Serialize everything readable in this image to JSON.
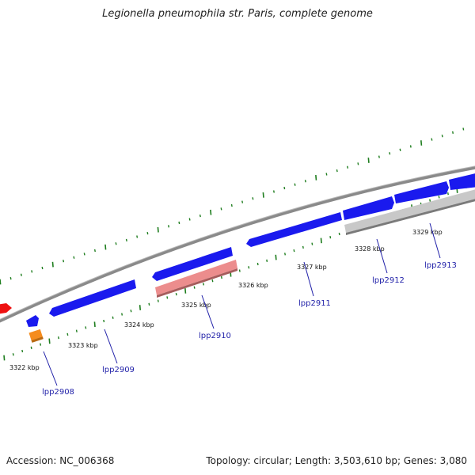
{
  "title": "Legionella pneumophila str. Paris, complete genome",
  "footer": {
    "accession": "Accession: NC_006368",
    "summary": "Topology: circular; Length: 3,503,610 bp; Genes: 3,080"
  },
  "colors": {
    "backbone": "#8a8a8a",
    "tick": "#1e7d1e",
    "gene_blue": "#1a1aee",
    "gene_red": "#ee1111",
    "gene_orange": "#f58c1e",
    "gene_pink": "#ec8d8d",
    "gene_grey": "#c8c8c8",
    "label": "#1f1fa8"
  },
  "kbp_labels": [
    "3322 kbp",
    "3323 kbp",
    "3324 kbp",
    "3325 kbp",
    "3326 kbp",
    "3327 kbp",
    "3328 kbp",
    "3329 kbp"
  ],
  "gene_labels": [
    "lpp2908",
    "lpp2909",
    "lpp2910",
    "lpp2911",
    "lpp2912",
    "lpp2913"
  ]
}
